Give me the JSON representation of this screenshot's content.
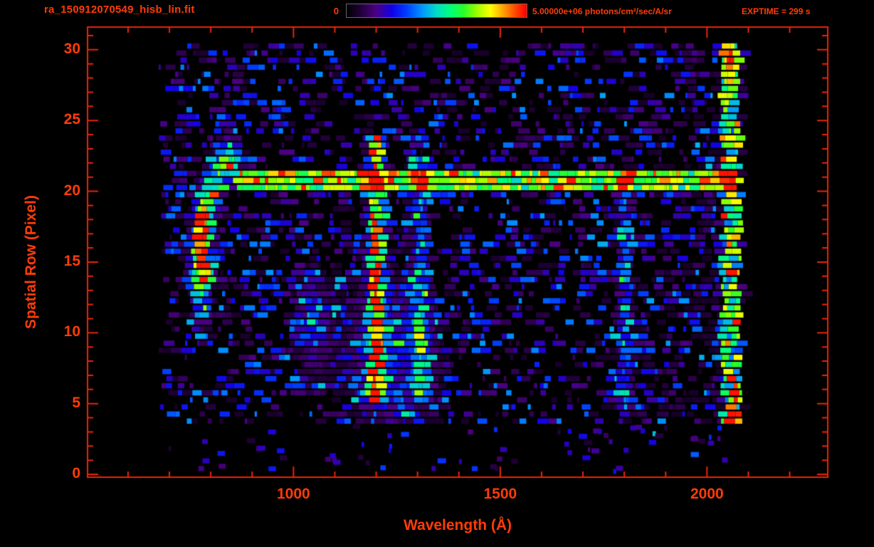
{
  "colors": {
    "background": "#000000",
    "frame": "#e8250a",
    "text": "#ff3c08",
    "colorbar_border": "#666666"
  },
  "header": {
    "title": "ra_150912070549_hisb_lin.fit",
    "colorbar_min_label": "0",
    "colorbar_max_label": "5.00000e+06 photons/cm²/sec/A/sr",
    "exptime_label": "EXPTIME = 299 s"
  },
  "chart_data": {
    "type": "heatmap",
    "title": "ra_150912070549_hisb_lin.fit",
    "xlabel": "Wavelength (Å)",
    "ylabel": "Spatial Row (Pixel)",
    "x_ticks": [
      1000,
      1500,
      2000
    ],
    "x_minor_step": 100,
    "y_ticks": [
      0,
      5,
      10,
      15,
      20,
      25,
      30
    ],
    "y_minor_step": 1,
    "x_range_axis": [
      502,
      2292
    ],
    "y_range_axis": [
      -0.2,
      31.6
    ],
    "data_x_range": [
      672,
      2085
    ],
    "data_y_range": [
      0,
      30.6
    ],
    "colorbar": {
      "min": 0,
      "max": 5000000,
      "max_label": "5.00000e+06",
      "units": "photons/cm²/sec/A/sr",
      "colormap": "rainbow"
    },
    "exposure_time_s": 299,
    "background_noise": {
      "typical_fraction_of_max": 0.12,
      "appearance": "speckled purple-blue dashes on black"
    },
    "features": [
      {
        "name": "continuum-streak",
        "kind": "hband",
        "rows": [
          19.95,
          21.45
        ],
        "wavelengths": [
          858,
          2058
        ],
        "intensity": 0.62
      },
      {
        "name": "lyman-alpha-emission",
        "kind": "vline",
        "wavelength": 1200,
        "sigma": 13,
        "rows": [
          4.9,
          24.2
        ],
        "intensity": 0.88
      },
      {
        "name": "emission-1300",
        "kind": "vline",
        "wavelength": 1308,
        "sigma": 14,
        "rows": [
          5.2,
          22.5
        ],
        "intensity": 0.34
      },
      {
        "name": "emission-1800",
        "kind": "vline",
        "wavelength": 1802,
        "sigma": 11,
        "rows": [
          4.5,
          21.5
        ],
        "intensity": 0.32
      },
      {
        "name": "bright-knot-780",
        "kind": "blob",
        "wavelength": 778,
        "row": 15.2,
        "sigma_wavelength": 15,
        "sigma_row": 2.4,
        "intensity": 1.05
      },
      {
        "name": "hook-arc",
        "kind": "arc",
        "points": [
          [
            788,
            18.2
          ],
          [
            806,
            20.2
          ],
          [
            828,
            21.6
          ],
          [
            852,
            22.2
          ]
        ],
        "sigma_wavelength": 14,
        "sigma_row": 1.1,
        "intensity": 0.6
      },
      {
        "name": "diffuse-cloud-1240",
        "kind": "blob",
        "wavelength": 1240,
        "row": 8.5,
        "sigma_wavelength": 75,
        "sigma_row": 3.6,
        "intensity": 0.26
      },
      {
        "name": "diffuse-cloud-1040",
        "kind": "blob",
        "wavelength": 1045,
        "row": 10.5,
        "sigma_wavelength": 32,
        "sigma_row": 2.6,
        "intensity": 0.2
      },
      {
        "name": "right-edge-band",
        "kind": "vband",
        "wavelengths": [
          2036,
          2082
        ],
        "rows": [
          3.2,
          30.6
        ],
        "intensity": 0.52
      },
      {
        "name": "right-edge-hotspots",
        "kind": "spots",
        "sigma_wavelength": 7,
        "sigma_row": 0.6,
        "spots": [
          [
            2058,
            20.9
          ],
          [
            2058,
            2.9
          ],
          [
            2058,
            29.3
          ],
          [
            2060,
            3.9
          ]
        ],
        "intensity": 0.95
      }
    ]
  }
}
